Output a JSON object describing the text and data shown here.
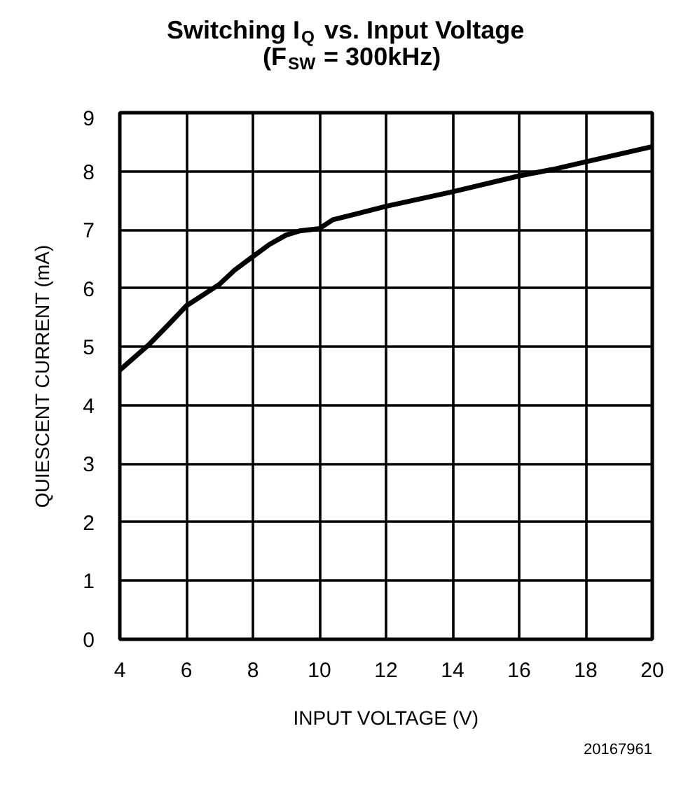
{
  "chart_data": {
    "type": "line",
    "title": "Switching I$_{Q}$ vs. Input Voltage",
    "subtitle": "(F$_{SW}$ = 300kHz)",
    "xlabel": "INPUT VOLTAGE (V)",
    "ylabel": "QUIESCENT CURRENT (mA)",
    "x": [
      4,
      4.9,
      5.5,
      6,
      7,
      7.45,
      7.9,
      8.5,
      9,
      9.4,
      10,
      10.4,
      12,
      14,
      16,
      17,
      18,
      20
    ],
    "series": [
      {
        "color": "#000000",
        "values": [
          4.6,
          5.05,
          5.4,
          5.7,
          6.07,
          6.31,
          6.5,
          6.75,
          6.91,
          6.98,
          7.02,
          7.17,
          7.4,
          7.65,
          7.92,
          8.03,
          8.16,
          8.42
        ]
      }
    ],
    "xlim": [
      4,
      20
    ],
    "ylim": [
      0,
      9
    ],
    "xticks": [
      4,
      6,
      8,
      10,
      12,
      14,
      16,
      18,
      20
    ],
    "yticks": [
      0,
      1,
      2,
      3,
      4,
      5,
      6,
      7,
      8,
      9
    ],
    "grid": true,
    "marker": "none",
    "line_style": "solid",
    "annotations": [
      "20167961"
    ]
  }
}
